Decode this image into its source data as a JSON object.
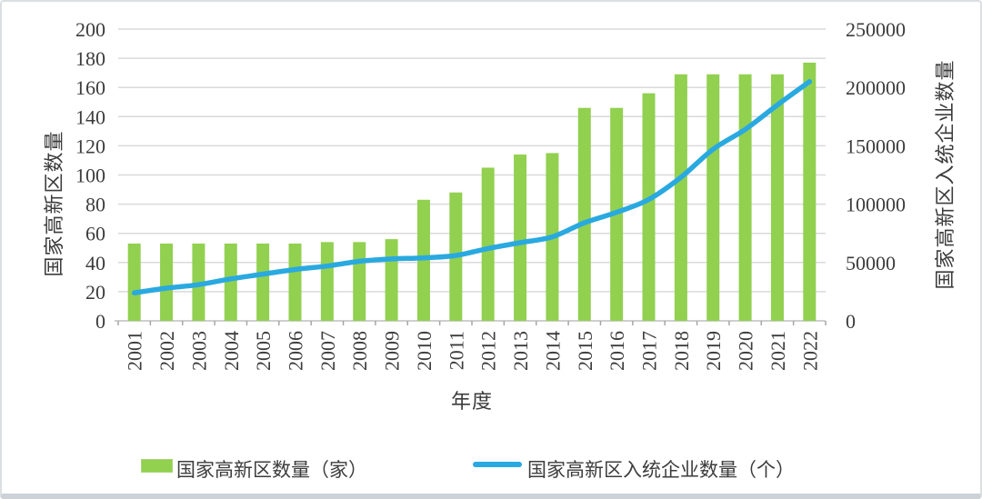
{
  "chart_data": {
    "type": "bar+line dual-axis",
    "categories": [
      "2001",
      "2002",
      "2003",
      "2004",
      "2005",
      "2006",
      "2007",
      "2008",
      "2009",
      "2010",
      "2011",
      "2012",
      "2013",
      "2014",
      "2015",
      "2016",
      "2017",
      "2018",
      "2019",
      "2020",
      "2021",
      "2022"
    ],
    "series": [
      {
        "name": "国家高新区数量（家）",
        "type": "bar",
        "axis": "left",
        "color": "#92d050",
        "values": [
          53,
          53,
          53,
          53,
          53,
          53,
          54,
          54,
          56,
          83,
          88,
          105,
          114,
          115,
          146,
          146,
          156,
          169,
          169,
          169,
          169,
          177
        ]
      },
      {
        "name": "国家高新区入统企业数量（个）",
        "type": "line",
        "axis": "right",
        "color": "#29a9e0",
        "values": [
          24000,
          28000,
          31000,
          36000,
          40000,
          44000,
          47000,
          51000,
          53000,
          54000,
          56000,
          62000,
          67000,
          72000,
          84000,
          93000,
          104000,
          123000,
          147000,
          164000,
          185000,
          205000
        ]
      }
    ],
    "left_axis": {
      "title": "国家高新区数量",
      "min": 0,
      "max": 200,
      "step": 20,
      "tick_labels": [
        "0",
        "20",
        "40",
        "60",
        "80",
        "100",
        "120",
        "140",
        "160",
        "180",
        "200"
      ]
    },
    "right_axis": {
      "title": "国家高新区入统企业数量",
      "min": 0,
      "max": 250000,
      "step": 50000,
      "tick_labels": [
        "0",
        "50000",
        "100000",
        "150000",
        "200000",
        "250000"
      ]
    },
    "x_axis": {
      "title": "年度"
    },
    "grid": true,
    "legend_position": "bottom"
  },
  "legend": {
    "items": [
      {
        "label": "国家高新区数量（家）",
        "swatch": "bar",
        "color": "#92d050"
      },
      {
        "label": "国家高新区入统企业数量（个）",
        "swatch": "line",
        "color": "#29a9e0"
      }
    ]
  },
  "colors": {
    "bar": "#92d050",
    "line": "#29a9e0",
    "gridline": "#dadada",
    "axis_line": "#cfcfcf",
    "tick": "#a6a6a6",
    "text": "#3c3c3c"
  }
}
